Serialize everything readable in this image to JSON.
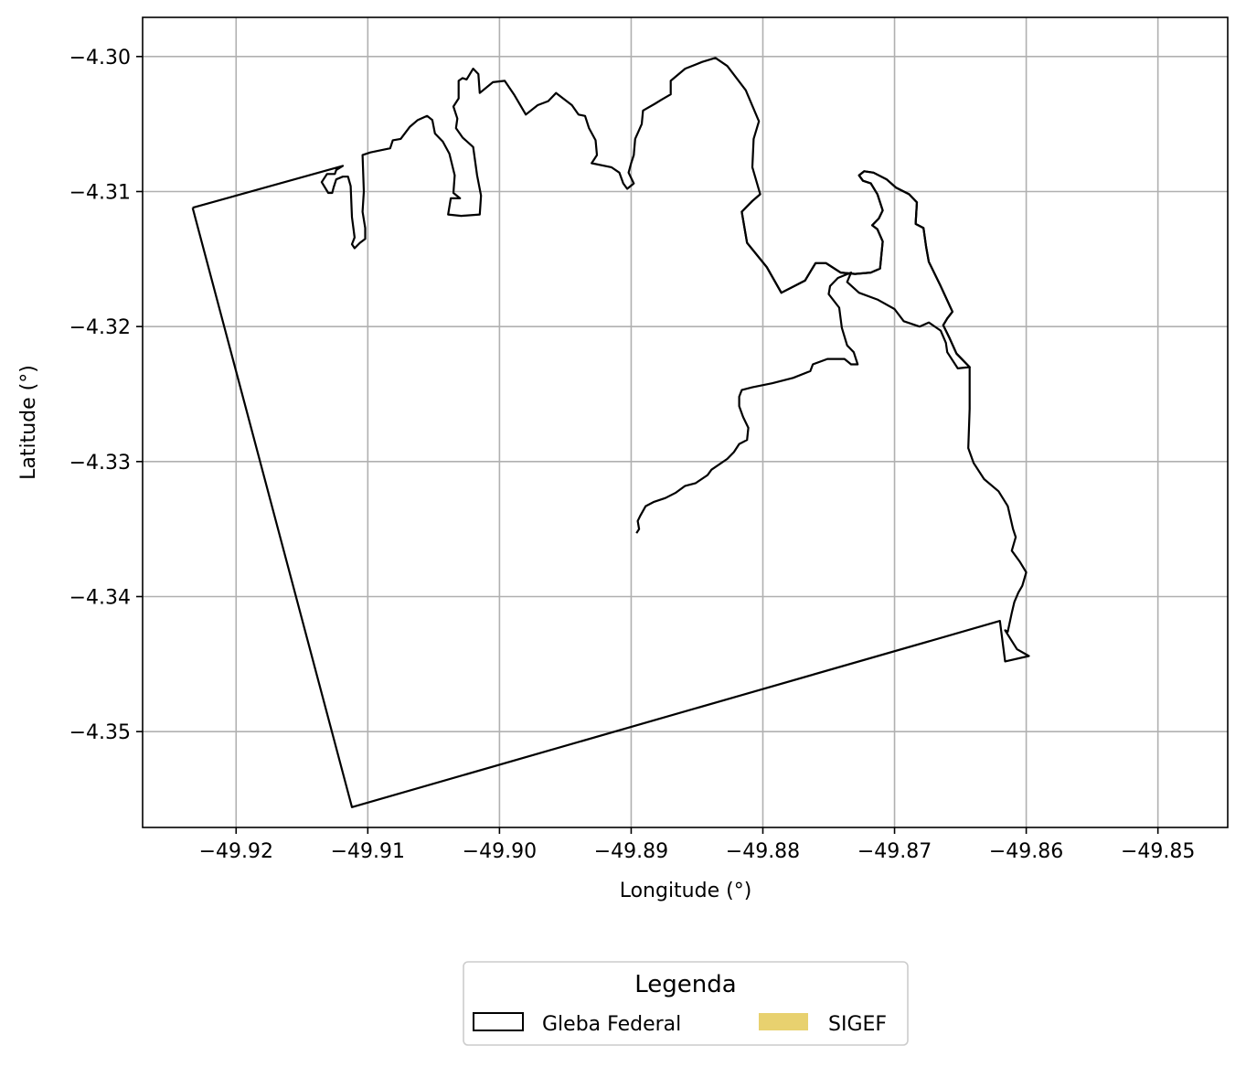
{
  "chart_data": {
    "type": "map",
    "xlabel": "Longitude (°)",
    "ylabel": "Latitude (°)",
    "xlim": [
      -49.9271,
      -49.8447
    ],
    "ylim": [
      -4.3571,
      -4.2971
    ],
    "grid": true,
    "x_ticks": [
      {
        "value": -49.92,
        "label": "−49.92"
      },
      {
        "value": -49.91,
        "label": "−49.91"
      },
      {
        "value": -49.9,
        "label": "−49.90"
      },
      {
        "value": -49.89,
        "label": "−49.89"
      },
      {
        "value": -49.88,
        "label": "−49.88"
      },
      {
        "value": -49.87,
        "label": "−49.87"
      },
      {
        "value": -49.86,
        "label": "−49.86"
      },
      {
        "value": -49.85,
        "label": "−49.85"
      }
    ],
    "y_ticks": [
      {
        "value": -4.3,
        "label": "−4.30"
      },
      {
        "value": -4.31,
        "label": "−4.31"
      },
      {
        "value": -4.32,
        "label": "−4.32"
      },
      {
        "value": -4.33,
        "label": "−4.33"
      },
      {
        "value": -4.34,
        "label": "−4.34"
      },
      {
        "value": -4.35,
        "label": "−4.35"
      }
    ],
    "legend": {
      "title": "Legenda",
      "placement": "below",
      "entries": [
        {
          "label": "Gleba Federal",
          "style": "outline",
          "edge_color": "#000000",
          "fill_color": "#ffffff"
        },
        {
          "label": "SIGEF",
          "style": "fill",
          "edge_color": "#e8d16f",
          "fill_color": "#e8d16f"
        }
      ]
    },
    "layers": [
      {
        "name": "Gleba Federal",
        "edge_color": "#000000",
        "fill_color": "none",
        "coordinates": [
          [
            -49.9233,
            -4.3112
          ],
          [
            -49.9119,
            -4.3081
          ],
          [
            -49.9124,
            -4.3084
          ],
          [
            -49.9125,
            -4.3087
          ],
          [
            -49.9131,
            -4.3087
          ],
          [
            -49.9135,
            -4.3093
          ],
          [
            -49.913,
            -4.3101
          ],
          [
            -49.9127,
            -4.3101
          ],
          [
            -49.9126,
            -4.3097
          ],
          [
            -49.9124,
            -4.3091
          ],
          [
            -49.9119,
            -4.3089
          ],
          [
            -49.9115,
            -4.3089
          ],
          [
            -49.9113,
            -4.3096
          ],
          [
            -49.9112,
            -4.3119
          ],
          [
            -49.911,
            -4.3134
          ],
          [
            -49.9112,
            -4.3139
          ],
          [
            -49.911,
            -4.3142
          ],
          [
            -49.9106,
            -4.3138
          ],
          [
            -49.9102,
            -4.3135
          ],
          [
            -49.9102,
            -4.3127
          ],
          [
            -49.9104,
            -4.3115
          ],
          [
            -49.9103,
            -4.31
          ],
          [
            -49.9104,
            -4.3073
          ],
          [
            -49.9098,
            -4.3071
          ],
          [
            -49.9088,
            -4.3069
          ],
          [
            -49.9083,
            -4.3068
          ],
          [
            -49.9081,
            -4.3062
          ],
          [
            -49.9075,
            -4.3061
          ],
          [
            -49.9068,
            -4.3052
          ],
          [
            -49.9062,
            -4.3047
          ],
          [
            -49.9055,
            -4.3044
          ],
          [
            -49.9051,
            -4.3047
          ],
          [
            -49.9049,
            -4.3057
          ],
          [
            -49.9043,
            -4.3063
          ],
          [
            -49.9038,
            -4.3072
          ],
          [
            -49.9034,
            -4.3088
          ],
          [
            -49.9035,
            -4.3101
          ],
          [
            -49.903,
            -4.3105
          ],
          [
            -49.9037,
            -4.3105
          ],
          [
            -49.9039,
            -4.3117
          ],
          [
            -49.9029,
            -4.3118
          ],
          [
            -49.9015,
            -4.3117
          ],
          [
            -49.9014,
            -4.3103
          ],
          [
            -49.9017,
            -4.3088
          ],
          [
            -49.902,
            -4.3067
          ],
          [
            -49.9028,
            -4.306
          ],
          [
            -49.9033,
            -4.3053
          ],
          [
            -49.9032,
            -4.3046
          ],
          [
            -49.9035,
            -4.3037
          ],
          [
            -49.9031,
            -4.3031
          ],
          [
            -49.9031,
            -4.3018
          ],
          [
            -49.9028,
            -4.3016
          ],
          [
            -49.9025,
            -4.3017
          ],
          [
            -49.902,
            -4.3009
          ],
          [
            -49.9016,
            -4.3013
          ],
          [
            -49.9015,
            -4.3027
          ],
          [
            -49.9005,
            -4.3019
          ],
          [
            -49.8996,
            -4.3018
          ],
          [
            -49.8989,
            -4.3028
          ],
          [
            -49.898,
            -4.3043
          ],
          [
            -49.8971,
            -4.3036
          ],
          [
            -49.8963,
            -4.3033
          ],
          [
            -49.8957,
            -4.3027
          ],
          [
            -49.8945,
            -4.3036
          ],
          [
            -49.894,
            -4.3043
          ],
          [
            -49.8935,
            -4.3044
          ],
          [
            -49.8932,
            -4.3053
          ],
          [
            -49.8927,
            -4.3062
          ],
          [
            -49.8926,
            -4.3073
          ],
          [
            -49.893,
            -4.3079
          ],
          [
            -49.8915,
            -4.3082
          ],
          [
            -49.8909,
            -4.3086
          ],
          [
            -49.8906,
            -4.3094
          ],
          [
            -49.8903,
            -4.3098
          ],
          [
            -49.8898,
            -4.3094
          ],
          [
            -49.8902,
            -4.3086
          ],
          [
            -49.89,
            -4.3079
          ],
          [
            -49.8898,
            -4.3073
          ],
          [
            -49.8897,
            -4.3061
          ],
          [
            -49.8892,
            -4.305
          ],
          [
            -49.8891,
            -4.304
          ],
          [
            -49.8882,
            -4.3035
          ],
          [
            -49.8877,
            -4.3032
          ],
          [
            -49.887,
            -4.3028
          ],
          [
            -49.887,
            -4.3018
          ],
          [
            -49.8859,
            -4.3009
          ],
          [
            -49.8846,
            -4.3004
          ],
          [
            -49.8836,
            -4.3001
          ],
          [
            -49.8827,
            -4.3007
          ],
          [
            -49.8813,
            -4.3025
          ],
          [
            -49.8803,
            -4.3048
          ],
          [
            -49.8807,
            -4.3061
          ],
          [
            -49.8808,
            -4.3082
          ],
          [
            -49.8802,
            -4.3102
          ],
          [
            -49.8808,
            -4.3107
          ],
          [
            -49.8816,
            -4.3115
          ],
          [
            -49.8812,
            -4.3138
          ],
          [
            -49.8797,
            -4.3156
          ],
          [
            -49.8786,
            -4.3175
          ],
          [
            -49.8768,
            -4.3166
          ],
          [
            -49.876,
            -4.3153
          ],
          [
            -49.8752,
            -4.3153
          ],
          [
            -49.8741,
            -4.316
          ],
          [
            -49.873,
            -4.3161
          ],
          [
            -49.8718,
            -4.316
          ],
          [
            -49.8711,
            -4.3157
          ],
          [
            -49.8709,
            -4.3137
          ],
          [
            -49.8713,
            -4.3128
          ],
          [
            -49.8717,
            -4.3125
          ],
          [
            -49.8712,
            -4.312
          ],
          [
            -49.8709,
            -4.3114
          ],
          [
            -49.8713,
            -4.3102
          ],
          [
            -49.8718,
            -4.3094
          ],
          [
            -49.8724,
            -4.3092
          ],
          [
            -49.8727,
            -4.3088
          ],
          [
            -49.8723,
            -4.3085
          ],
          [
            -49.8716,
            -4.3086
          ],
          [
            -49.8706,
            -4.3091
          ],
          [
            -49.8699,
            -4.3097
          ],
          [
            -49.8689,
            -4.3102
          ],
          [
            -49.8683,
            -4.3108
          ],
          [
            -49.8684,
            -4.3124
          ],
          [
            -49.8678,
            -4.3127
          ],
          [
            -49.8676,
            -4.3141
          ],
          [
            -49.8674,
            -4.3152
          ],
          [
            -49.8665,
            -4.317
          ],
          [
            -49.8656,
            -4.3189
          ],
          [
            -49.866,
            -4.3194
          ],
          [
            -49.8663,
            -4.3199
          ],
          [
            -49.8658,
            -4.3209
          ],
          [
            -49.8653,
            -4.322
          ],
          [
            -49.8643,
            -4.323
          ],
          [
            -49.8643,
            -4.3261
          ],
          [
            -49.8644,
            -4.329
          ],
          [
            -49.864,
            -4.3301
          ],
          [
            -49.8632,
            -4.3313
          ],
          [
            -49.8621,
            -4.3322
          ],
          [
            -49.8614,
            -4.3333
          ],
          [
            -49.861,
            -4.335
          ],
          [
            -49.8608,
            -4.3356
          ],
          [
            -49.8611,
            -4.3366
          ],
          [
            -49.8605,
            -4.3374
          ],
          [
            -49.86,
            -4.3382
          ],
          [
            -49.8603,
            -4.3392
          ],
          [
            -49.8606,
            -4.3397
          ],
          [
            -49.8609,
            -4.3404
          ],
          [
            -49.8611,
            -4.3412
          ],
          [
            -49.8614,
            -4.3426
          ],
          [
            -49.8616,
            -4.3425
          ],
          [
            -49.8607,
            -4.3439
          ],
          [
            -49.8598,
            -4.3444
          ],
          [
            -49.8616,
            -4.3448
          ],
          [
            -49.862,
            -4.3418
          ],
          [
            -49.9112,
            -4.3556
          ],
          [
            -49.9233,
            -4.3112
          ]
        ]
      },
      {
        "name": "Gleba Federal",
        "edge_color": "#000000",
        "fill_color": "none",
        "coordinates": [
          [
            -49.8896,
            -4.3353
          ],
          [
            -49.8894,
            -4.335
          ],
          [
            -49.8895,
            -4.3344
          ],
          [
            -49.8893,
            -4.334
          ],
          [
            -49.8889,
            -4.3333
          ],
          [
            -49.8883,
            -4.333
          ],
          [
            -49.8874,
            -4.3327
          ],
          [
            -49.8866,
            -4.3323
          ],
          [
            -49.8859,
            -4.3318
          ],
          [
            -49.8851,
            -4.3316
          ],
          [
            -49.8842,
            -4.331
          ],
          [
            -49.8839,
            -4.3306
          ],
          [
            -49.8827,
            -4.3298
          ],
          [
            -49.8822,
            -4.3293
          ],
          [
            -49.8818,
            -4.3287
          ],
          [
            -49.8812,
            -4.3284
          ],
          [
            -49.8811,
            -4.3275
          ],
          [
            -49.8815,
            -4.3267
          ],
          [
            -49.8818,
            -4.3259
          ],
          [
            -49.8818,
            -4.3252
          ],
          [
            -49.8816,
            -4.3247
          ],
          [
            -49.8808,
            -4.3245
          ],
          [
            -49.8793,
            -4.3242
          ],
          [
            -49.8777,
            -4.3238
          ],
          [
            -49.8764,
            -4.3233
          ],
          [
            -49.8762,
            -4.3228
          ],
          [
            -49.8751,
            -4.3224
          ],
          [
            -49.8738,
            -4.3224
          ],
          [
            -49.8733,
            -4.3228
          ],
          [
            -49.8728,
            -4.3228
          ],
          [
            -49.8731,
            -4.3219
          ],
          [
            -49.8736,
            -4.3214
          ],
          [
            -49.874,
            -4.3201
          ],
          [
            -49.8742,
            -4.3186
          ],
          [
            -49.875,
            -4.3176
          ],
          [
            -49.8749,
            -4.317
          ],
          [
            -49.8743,
            -4.3164
          ],
          [
            -49.8733,
            -4.316
          ],
          [
            -49.8736,
            -4.3167
          ],
          [
            -49.8727,
            -4.3175
          ],
          [
            -49.8713,
            -4.318
          ],
          [
            -49.87,
            -4.3187
          ],
          [
            -49.8693,
            -4.3196
          ],
          [
            -49.8681,
            -4.32
          ],
          [
            -49.8674,
            -4.3197
          ],
          [
            -49.8665,
            -4.3203
          ],
          [
            -49.8661,
            -4.3212
          ],
          [
            -49.866,
            -4.3219
          ],
          [
            -49.8652,
            -4.3231
          ],
          [
            -49.8643,
            -4.323
          ],
          [
            -49.8653,
            -4.322
          ],
          [
            -49.8658,
            -4.3209
          ],
          [
            -49.8663,
            -4.3199
          ],
          [
            -49.866,
            -4.3194
          ],
          [
            -49.8656,
            -4.3189
          ],
          [
            -49.8665,
            -4.317
          ],
          [
            -49.8674,
            -4.3152
          ],
          [
            -49.8676,
            -4.3141
          ],
          [
            -49.8678,
            -4.3127
          ],
          [
            -49.8684,
            -4.3124
          ],
          [
            -49.8683,
            -4.3108
          ],
          [
            -49.8689,
            -4.3102
          ],
          [
            -49.8699,
            -4.3097
          ],
          [
            -49.8706,
            -4.3091
          ],
          [
            -49.8716,
            -4.3086
          ],
          [
            -49.8723,
            -4.3085
          ],
          [
            -49.8727,
            -4.3088
          ],
          [
            -49.8724,
            -4.3092
          ],
          [
            -49.8718,
            -4.3094
          ],
          [
            -49.8713,
            -4.3102
          ],
          [
            -49.8709,
            -4.3114
          ],
          [
            -49.8712,
            -4.312
          ],
          [
            -49.8717,
            -4.3125
          ],
          [
            -49.8713,
            -4.3128
          ],
          [
            -49.8709,
            -4.3137
          ],
          [
            -49.8711,
            -4.3157
          ],
          [
            -49.8718,
            -4.316
          ],
          [
            -49.873,
            -4.3161
          ],
          [
            -49.8741,
            -4.316
          ],
          [
            -49.8752,
            -4.3153
          ],
          [
            -49.876,
            -4.3153
          ],
          [
            -49.8768,
            -4.3166
          ],
          [
            -49.8786,
            -4.3175
          ],
          [
            -49.8797,
            -4.3156
          ],
          [
            -49.8812,
            -4.3138
          ],
          [
            -49.8816,
            -4.3115
          ],
          [
            -49.8808,
            -4.3107
          ],
          [
            -49.8802,
            -4.3102
          ]
        ]
      }
    ]
  }
}
